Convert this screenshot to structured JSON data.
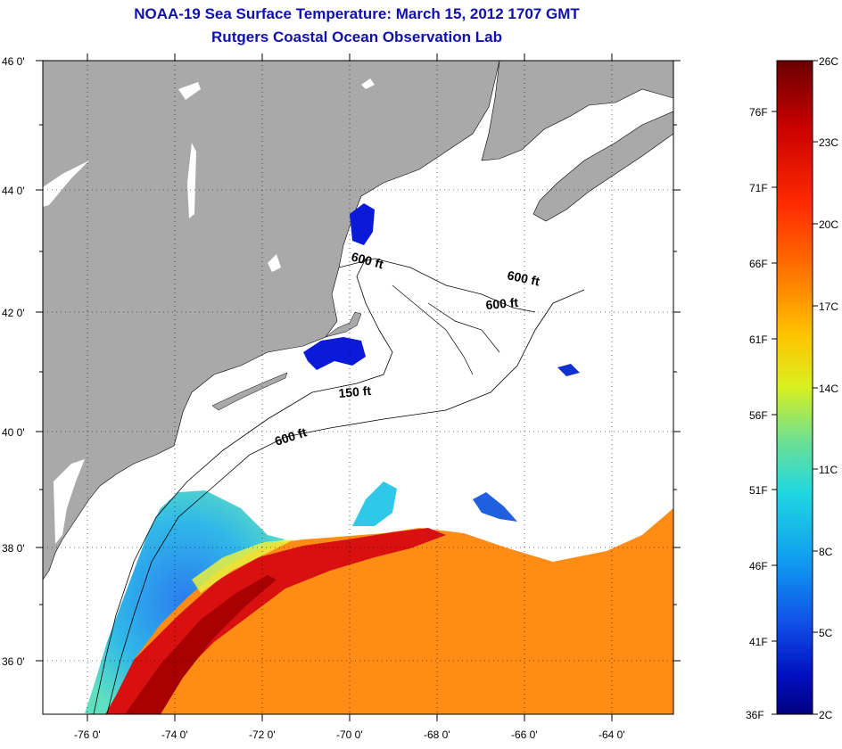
{
  "title": {
    "line1": "NOAA-19 Sea Surface Temperature:  March 15, 2012 1707 GMT",
    "line2": "Rutgers Coastal Ocean Observation Lab"
  },
  "map": {
    "lat_labels": [
      "46 0'",
      "44 0'",
      "42 0'",
      "40 0'",
      "38 0'",
      "36 0'"
    ],
    "lon_labels": [
      "-76 0'",
      "-74 0'",
      "-72 0'",
      "-70 0'",
      "-68 0'",
      "-66 0'",
      "-64 0'"
    ],
    "contour_labels": [
      "600 ft",
      "600 ft",
      "600 ft",
      "150 ft",
      "600 ft"
    ],
    "colors": {
      "land": "#a9a9a9",
      "no_data": "#ffffff",
      "grid": "#000000"
    }
  },
  "colorbar": {
    "celsius_labels": [
      "26C",
      "23C",
      "20C",
      "17C",
      "14C",
      "11C",
      "8C",
      "5C",
      "2C"
    ],
    "fahrenheit_labels": [
      "76F",
      "71F",
      "66F",
      "61F",
      "56F",
      "51F",
      "46F",
      "41F",
      "36F"
    ],
    "gradient": [
      "#800000",
      "#d40000",
      "#ff3a00",
      "#ff8c00",
      "#ffd200",
      "#e6ff1a",
      "#7dff7d",
      "#1ae6e6",
      "#00a0ff",
      "#0050ff",
      "#0000c8",
      "#000080"
    ]
  }
}
